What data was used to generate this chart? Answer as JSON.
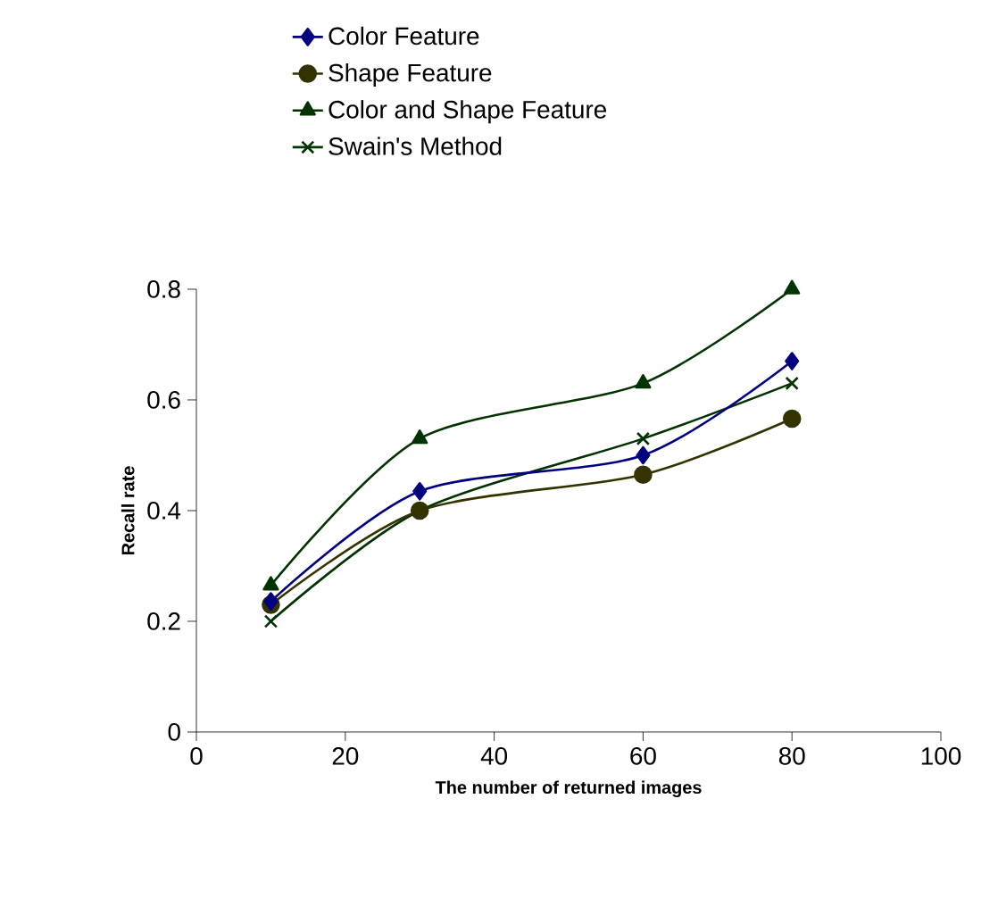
{
  "chart_data": {
    "type": "line",
    "xlabel": "The number of returned images",
    "ylabel": "Recall rate",
    "x": [
      10,
      30,
      60,
      80
    ],
    "series": [
      {
        "name": "Color Feature",
        "color": "#000080",
        "marker": "diamond",
        "values": [
          0.236,
          0.435,
          0.5,
          0.67
        ]
      },
      {
        "name": "Shape Feature",
        "color": "#333300",
        "marker": "circle",
        "values": [
          0.23,
          0.4,
          0.465,
          0.566
        ]
      },
      {
        "name": "Color and Shape Feature",
        "color": "#003300",
        "marker": "triangle",
        "values": [
          0.265,
          0.53,
          0.63,
          0.8
        ]
      },
      {
        "name": "Swain's Method",
        "color": "#003300",
        "marker": "cross",
        "values": [
          0.2,
          0.4,
          0.53,
          0.63
        ]
      }
    ],
    "xlim": [
      0,
      100
    ],
    "xticks": [
      0,
      20,
      40,
      60,
      80,
      100
    ],
    "ylim": [
      0,
      0.8
    ],
    "yticks": [
      0,
      0.2,
      0.4,
      0.6,
      0.8
    ],
    "grid": false,
    "legend": "top",
    "line_style": "solid"
  }
}
